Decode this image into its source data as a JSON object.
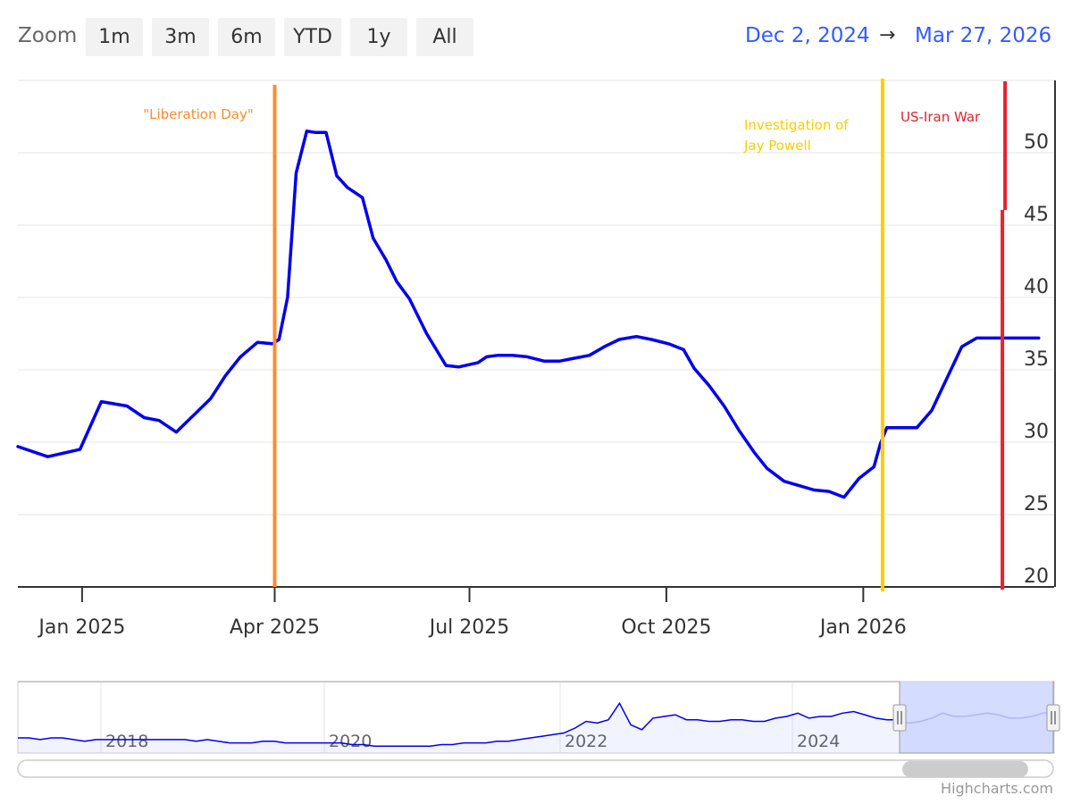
{
  "toolbar": {
    "zoom_label": "Zoom",
    "buttons": [
      "1m",
      "3m",
      "6m",
      "YTD",
      "1y",
      "All"
    ],
    "range_from": "Dec 2, 2024",
    "range_arrow": "→",
    "range_to": "Mar 27, 2026"
  },
  "credits": "Highcharts.com",
  "colors": {
    "series": "#0000ee",
    "liberation": "#ff8c2b",
    "powell": "#ffcc00",
    "iran": "#e3242b",
    "navigator_mask": "#ccd6ff",
    "range_text": "#335cff"
  },
  "chart_data": {
    "type": "line",
    "ylim": [
      20,
      55
    ],
    "y_ticks": [
      20,
      25,
      30,
      35,
      40,
      45,
      50
    ],
    "x_range": [
      "2024-12-02",
      "2026-03-27"
    ],
    "x_ticks": [
      {
        "date": "2025-01-01",
        "label": "Jan 2025"
      },
      {
        "date": "2025-04-01",
        "label": "Apr 2025"
      },
      {
        "date": "2025-07-01",
        "label": "Jul 2025"
      },
      {
        "date": "2025-10-01",
        "label": "Oct 2025"
      },
      {
        "date": "2026-01-01",
        "label": "Jan 2026"
      }
    ],
    "series": [
      {
        "x": [
          "2024-12-02",
          "2024-12-16",
          "2024-12-31",
          "2025-01-10",
          "2025-01-22",
          "2025-01-30",
          "2025-02-06",
          "2025-02-14",
          "2025-03-02",
          "2025-03-09",
          "2025-03-16",
          "2025-03-24",
          "2025-03-31",
          "2025-04-03",
          "2025-04-07",
          "2025-04-11",
          "2025-04-16",
          "2025-04-20",
          "2025-04-25",
          "2025-04-30",
          "2025-05-05",
          "2025-05-12",
          "2025-05-17",
          "2025-05-23",
          "2025-05-28",
          "2025-06-03",
          "2025-06-11",
          "2025-06-20",
          "2025-06-26",
          "2025-07-05",
          "2025-07-09",
          "2025-07-14",
          "2025-07-21",
          "2025-07-28",
          "2025-08-05",
          "2025-08-12",
          "2025-08-19",
          "2025-08-26",
          "2025-09-02",
          "2025-09-09",
          "2025-09-17",
          "2025-09-24",
          "2025-10-02",
          "2025-10-09",
          "2025-10-14",
          "2025-10-21",
          "2025-10-28",
          "2025-11-04",
          "2025-11-11",
          "2025-11-17",
          "2025-11-25",
          "2025-12-02",
          "2025-12-09",
          "2025-12-16",
          "2025-12-23",
          "2025-12-30",
          "2026-01-06",
          "2026-01-09",
          "2026-01-12",
          "2026-01-19",
          "2026-01-26",
          "2026-02-02",
          "2026-02-09",
          "2026-02-16",
          "2026-02-23",
          "2026-02-27",
          "2026-03-04",
          "2026-03-10",
          "2026-03-17",
          "2026-03-24"
        ],
        "values": [
          29.7,
          29.0,
          29.5,
          32.8,
          32.5,
          31.7,
          31.5,
          30.7,
          33.0,
          34.6,
          35.9,
          36.9,
          36.8,
          37.1,
          40.0,
          48.6,
          51.5,
          51.4,
          51.4,
          48.4,
          47.6,
          46.9,
          44.1,
          42.6,
          41.1,
          39.9,
          37.5,
          35.3,
          35.2,
          35.5,
          35.9,
          36.0,
          36.0,
          35.9,
          35.6,
          35.6,
          35.8,
          36.0,
          36.6,
          37.1,
          37.3,
          37.1,
          36.8,
          36.4,
          35.1,
          33.9,
          32.5,
          30.8,
          29.3,
          28.2,
          27.3,
          27.0,
          26.7,
          26.6,
          26.2,
          27.5,
          28.3,
          29.9,
          31.0,
          31.0,
          31.0,
          32.2,
          34.4,
          36.6,
          37.2,
          37.2,
          37.2,
          37.2,
          37.2,
          37.2
        ]
      }
    ],
    "annotations": [
      {
        "date": "2025-04-01",
        "label": "\"Liberation Day\"",
        "color": "#ff8c2b"
      },
      {
        "date": "2026-01-10",
        "label": "Investigation of Jay Powell",
        "color": "#ffcc00"
      },
      {
        "date": "2026-03-07",
        "label": "US-Iran War",
        "color": "#e3242b"
      }
    ]
  },
  "navigator": {
    "year_labels": [
      "2018",
      "2020",
      "2022",
      "2024"
    ],
    "series_values": [
      21,
      21,
      20,
      21,
      21,
      20,
      19,
      20,
      20,
      20,
      20,
      20,
      20,
      20,
      20,
      20,
      19,
      20,
      19,
      18,
      18,
      18,
      19,
      19,
      18,
      18,
      18,
      18,
      18,
      18,
      17,
      17,
      16,
      16,
      16,
      16,
      16,
      16,
      17,
      17,
      18,
      18,
      18,
      19,
      19,
      20,
      21,
      22,
      23,
      24,
      27,
      31,
      30,
      32,
      42,
      29,
      26,
      33,
      34,
      35,
      32,
      32,
      31,
      31,
      32,
      32,
      31,
      31,
      33,
      34,
      36,
      33,
      34,
      34,
      36,
      37,
      35,
      33,
      32,
      32,
      30,
      31,
      33,
      36,
      34,
      34,
      35,
      36,
      35,
      33,
      33,
      34,
      36,
      36
    ]
  }
}
